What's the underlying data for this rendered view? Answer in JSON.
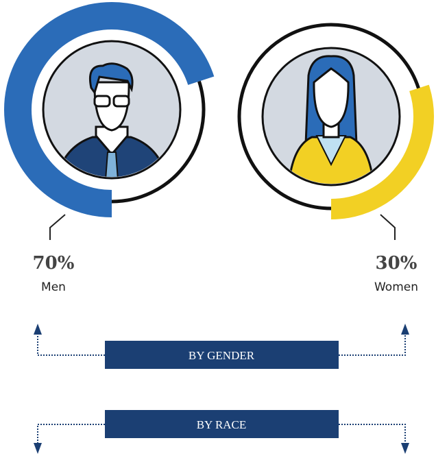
{
  "chart_data": [
    {
      "type": "donut",
      "categories": [
        "Men",
        null
      ],
      "values": [
        70,
        30
      ],
      "value_labels": [
        "70%",
        null
      ],
      "colors": [
        "#2b6cb8",
        "#111111"
      ]
    },
    {
      "type": "donut",
      "categories": [
        "Women",
        null
      ],
      "values": [
        30,
        70
      ],
      "value_labels": [
        "30%",
        null
      ],
      "colors": [
        "#f2d024",
        "#111111"
      ]
    }
  ],
  "buttons": [
    "BY GENDER",
    "BY RACE"
  ]
}
